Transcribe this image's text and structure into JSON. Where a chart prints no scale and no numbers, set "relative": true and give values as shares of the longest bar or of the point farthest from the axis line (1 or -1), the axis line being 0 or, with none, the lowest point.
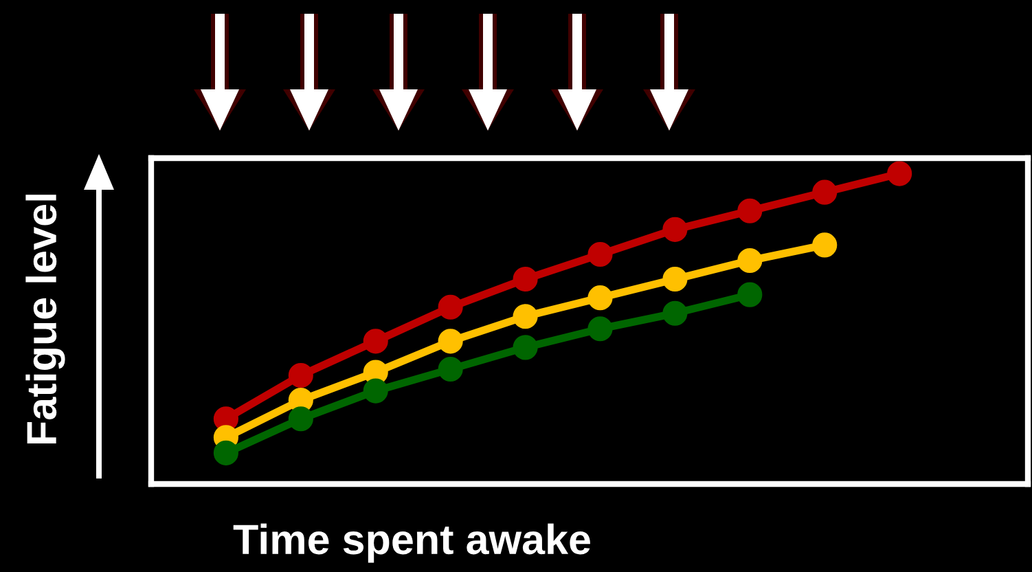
{
  "chart_data": {
    "type": "line",
    "relative": true,
    "xlabel": "Time spent awake",
    "ylabel": "Fatigue level",
    "categories": [
      null,
      null,
      null,
      null,
      null,
      null,
      null,
      null,
      null,
      null
    ],
    "series": [
      {
        "color": "#c00000",
        "values": [
          0.21,
          0.35,
          0.46,
          0.57,
          0.66,
          0.74,
          0.82,
          0.88,
          0.94,
          1.0
        ]
      },
      {
        "color": "#ffc000",
        "values": [
          0.15,
          0.27,
          0.36,
          0.46,
          0.54,
          0.6,
          0.66,
          0.72,
          0.77,
          null
        ]
      },
      {
        "color": "#006600",
        "values": [
          0.1,
          0.21,
          0.3,
          0.37,
          0.44,
          0.5,
          0.55,
          0.61,
          null,
          null
        ]
      }
    ],
    "marker": "circle",
    "line_style": "solid"
  }
}
